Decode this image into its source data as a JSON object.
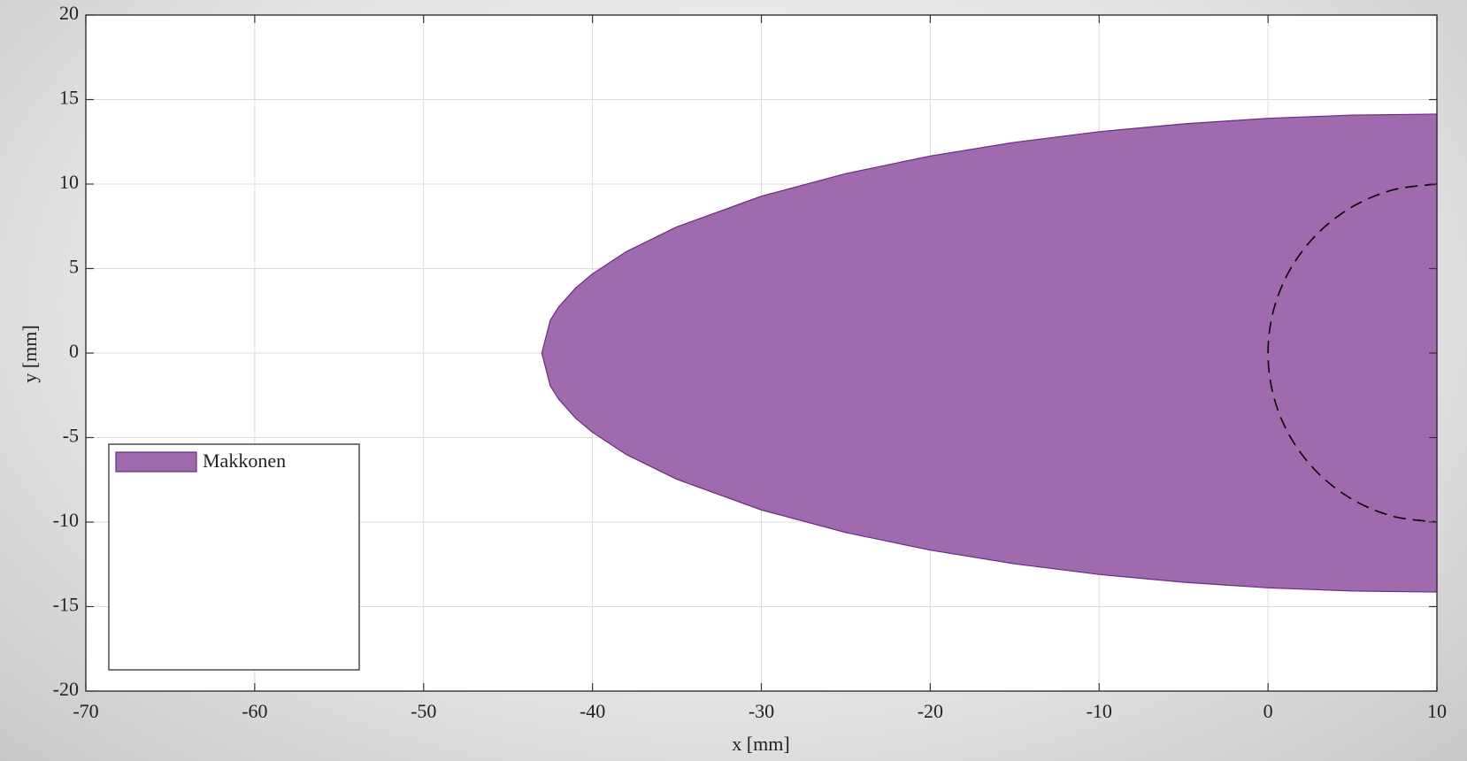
{
  "chart_data": {
    "type": "area",
    "xlabel": "x [mm]",
    "ylabel": "y [mm]",
    "xlim": [
      -70,
      10
    ],
    "ylim": [
      -20,
      20
    ],
    "xticks": [
      -70,
      -60,
      -50,
      -40,
      -30,
      -20,
      -10,
      0,
      10
    ],
    "yticks": [
      -20,
      -15,
      -10,
      -5,
      0,
      5,
      10,
      15,
      20
    ],
    "grid": true,
    "legend": "lower left",
    "series": [
      {
        "name": "Makkonen",
        "type": "area",
        "color": "#a06aae",
        "edge": "#6a2c7e",
        "x": [
          -43,
          -42.5,
          -42,
          -41,
          -40,
          -38,
          -35,
          -30,
          -25,
          -20,
          -15,
          -10,
          -5,
          0,
          5,
          10
        ],
        "values": [
          0,
          1.94,
          2.73,
          3.85,
          4.69,
          6.0,
          7.47,
          9.28,
          10.62,
          11.66,
          12.47,
          13.1,
          13.56,
          13.89,
          14.08,
          14.14
        ],
        "lower": [
          0,
          -1.94,
          -2.73,
          -3.85,
          -4.69,
          -6.0,
          -7.47,
          -9.28,
          -10.62,
          -11.66,
          -12.47,
          -13.1,
          -13.56,
          -13.89,
          -14.08,
          -14.14
        ]
      },
      {
        "type": "line",
        "color": "#000000",
        "linestyle": "dashed",
        "x": [
          10,
          7.41,
          5,
          2.93,
          1.34,
          0.34,
          0,
          0.34,
          1.34,
          2.93,
          5,
          7.41,
          10
        ],
        "values": [
          10,
          9.66,
          8.66,
          7.07,
          5,
          2.59,
          0,
          -2.59,
          -5,
          -7.07,
          -8.66,
          -9.66,
          -10
        ]
      }
    ]
  }
}
